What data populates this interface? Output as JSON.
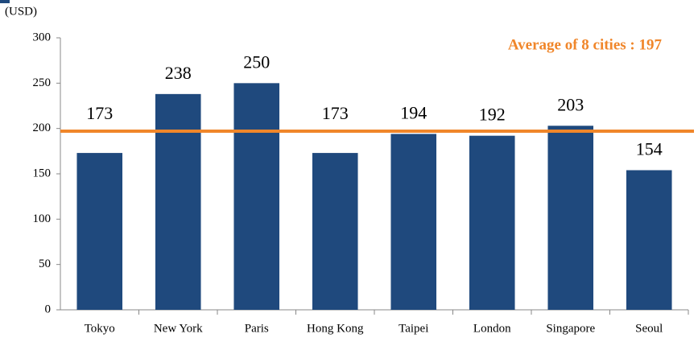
{
  "chart_data": {
    "type": "bar",
    "unit_label": "(USD)",
    "categories": [
      "Tokyo",
      "New York",
      "Paris",
      "Hong Kong",
      "Taipei",
      "London",
      "Singapore",
      "Seoul"
    ],
    "values": [
      173,
      238,
      250,
      173,
      194,
      192,
      203,
      154
    ],
    "color": "#1f497d",
    "average": 197,
    "average_color": "#f0862a",
    "annotation": "Average of 8 cities : 197",
    "ylim": [
      0,
      300
    ],
    "yticks": [
      0,
      50,
      100,
      150,
      200,
      250,
      300
    ]
  }
}
